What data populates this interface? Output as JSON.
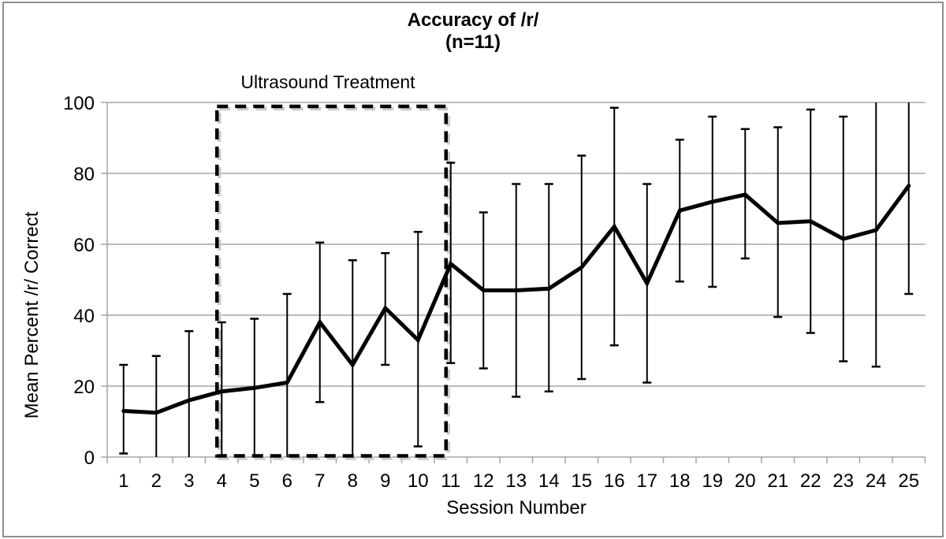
{
  "chart_data": {
    "type": "line",
    "title": "Accuracy of /r/",
    "subtitle": "(n=11)",
    "xlabel": "Session Number",
    "ylabel": "Mean Percent /r/ Correct",
    "x": [
      1,
      2,
      3,
      4,
      5,
      6,
      7,
      8,
      9,
      10,
      11,
      12,
      13,
      14,
      15,
      16,
      17,
      18,
      19,
      20,
      21,
      22,
      23,
      24,
      25
    ],
    "values": [
      13,
      12.5,
      16,
      18.5,
      19.5,
      21,
      38,
      26,
      42,
      33,
      54.5,
      47,
      47,
      47.5,
      53.5,
      65,
      49,
      69.5,
      72,
      74,
      66,
      66.5,
      61.5,
      64,
      76.5
    ],
    "error_upper": [
      26,
      28.5,
      35.5,
      38,
      39,
      46,
      60.5,
      55.5,
      57.5,
      63.5,
      83,
      69,
      77,
      77,
      85,
      98.5,
      77,
      89.5,
      96,
      92.5,
      93,
      98,
      96,
      100,
      100
    ],
    "error_lower": [
      1,
      0,
      0,
      0,
      0,
      0,
      15.5,
      0,
      26,
      3,
      26.5,
      25,
      17,
      18.5,
      22,
      31.5,
      21,
      49.5,
      48,
      56,
      39.5,
      35,
      27,
      25.5,
      46
    ],
    "ylim": [
      0,
      100
    ],
    "yticks": [
      0,
      20,
      40,
      60,
      80,
      100
    ],
    "grid": "horizontal-only",
    "legend": "none",
    "treatment_box": {
      "label": "Ultrasound Treatment",
      "start_session": 4,
      "end_session": 10
    }
  },
  "colors": {
    "line": "#000000",
    "error_bar": "#000000",
    "grid": "#a6a6a6",
    "axis": "#a6a6a6",
    "box_dash": "#000000",
    "box_shadow": "#cccccc",
    "text": "#000000",
    "frame": "#8e8e8e",
    "background": "#ffffff"
  }
}
